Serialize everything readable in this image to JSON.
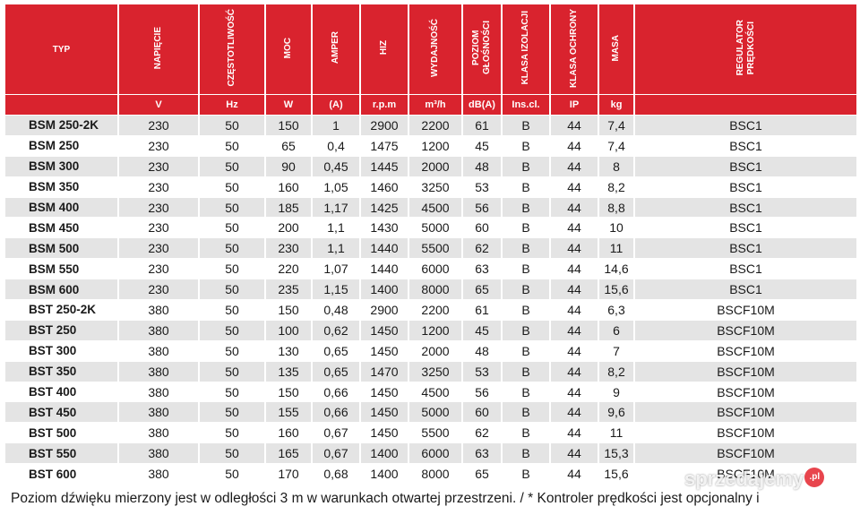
{
  "headers": [
    "TYP",
    "NAPIĘCIE",
    "CZĘSTOTLIWOŚĆ",
    "MOC",
    "AMPER",
    "HIZ",
    "WYDAJNOŚĆ",
    "POZIOM\nGŁOŚNOŚCI",
    "KLASA IZOLACJI",
    "KLASA OCHRONY",
    "MASA",
    "REGULATOR\nPRĘDKOŚCI"
  ],
  "units": [
    "",
    "V",
    "Hz",
    "W",
    "(A)",
    "r.p.m",
    "m³/h",
    "dB(A)",
    "Ins.cl.",
    "IP",
    "kg",
    ""
  ],
  "rows": [
    [
      "BSM 250-2K",
      "230",
      "50",
      "150",
      "1",
      "2900",
      "2200",
      "61",
      "B",
      "44",
      "7,4",
      "BSC1"
    ],
    [
      "BSM 250",
      "230",
      "50",
      "65",
      "0,4",
      "1475",
      "1200",
      "45",
      "B",
      "44",
      "7,4",
      "BSC1"
    ],
    [
      "BSM 300",
      "230",
      "50",
      "90",
      "0,45",
      "1445",
      "2000",
      "48",
      "B",
      "44",
      "8",
      "BSC1"
    ],
    [
      "BSM 350",
      "230",
      "50",
      "160",
      "1,05",
      "1460",
      "3250",
      "53",
      "B",
      "44",
      "8,2",
      "BSC1"
    ],
    [
      "BSM 400",
      "230",
      "50",
      "185",
      "1,17",
      "1425",
      "4500",
      "56",
      "B",
      "44",
      "8,8",
      "BSC1"
    ],
    [
      "BSM 450",
      "230",
      "50",
      "200",
      "1,1",
      "1430",
      "5000",
      "60",
      "B",
      "44",
      "10",
      "BSC1"
    ],
    [
      "BSM 500",
      "230",
      "50",
      "230",
      "1,1",
      "1440",
      "5500",
      "62",
      "B",
      "44",
      "11",
      "BSC1"
    ],
    [
      "BSM 550",
      "230",
      "50",
      "220",
      "1,07",
      "1440",
      "6000",
      "63",
      "B",
      "44",
      "14,6",
      "BSC1"
    ],
    [
      "BSM 600",
      "230",
      "50",
      "235",
      "1,15",
      "1400",
      "8000",
      "65",
      "B",
      "44",
      "15,6",
      "BSC1"
    ],
    [
      "BST 250-2K",
      "380",
      "50",
      "150",
      "0,48",
      "2900",
      "2200",
      "61",
      "B",
      "44",
      "6,3",
      "BSCF10M"
    ],
    [
      "BST 250",
      "380",
      "50",
      "100",
      "0,62",
      "1450",
      "1200",
      "45",
      "B",
      "44",
      "6",
      "BSCF10M"
    ],
    [
      "BST 300",
      "380",
      "50",
      "130",
      "0,65",
      "1450",
      "2000",
      "48",
      "B",
      "44",
      "7",
      "BSCF10M"
    ],
    [
      "BST 350",
      "380",
      "50",
      "135",
      "0,65",
      "1470",
      "3250",
      "53",
      "B",
      "44",
      "8,2",
      "BSCF10M"
    ],
    [
      "BST 400",
      "380",
      "50",
      "150",
      "0,66",
      "1450",
      "4500",
      "56",
      "B",
      "44",
      "9",
      "BSCF10M"
    ],
    [
      "BST 450",
      "380",
      "50",
      "155",
      "0,66",
      "1450",
      "5000",
      "60",
      "B",
      "44",
      "9,6",
      "BSCF10M"
    ],
    [
      "BST 500",
      "380",
      "50",
      "160",
      "0,67",
      "1450",
      "5500",
      "62",
      "B",
      "44",
      "11",
      "BSCF10M"
    ],
    [
      "BST 550",
      "380",
      "50",
      "165",
      "0,67",
      "1400",
      "6000",
      "63",
      "B",
      "44",
      "15,3",
      "BSCF10M"
    ],
    [
      "BST 600",
      "380",
      "50",
      "170",
      "0,68",
      "1400",
      "8000",
      "65",
      "B",
      "44",
      "15,6",
      "BSCF10M"
    ]
  ],
  "footnote": "Poziom dźwięku mierzony jest w odległości 3 m w warunkach otwartej przestrzeni. / * Kontroler prędkości jest opcjonalny i",
  "watermark": {
    "text": "sprzedajemy",
    "badge": ".pl"
  }
}
